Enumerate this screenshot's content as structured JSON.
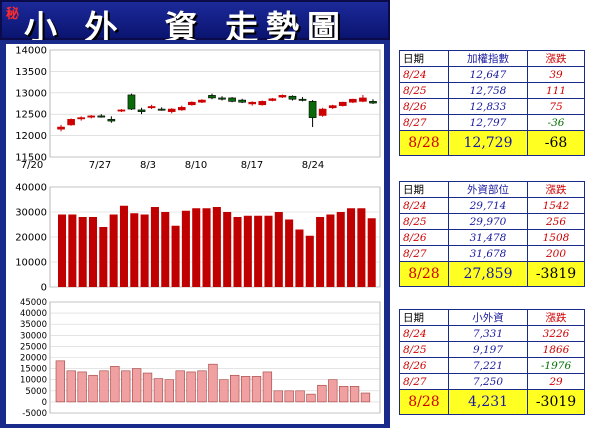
{
  "banner": {
    "tag": "秘",
    "title": "小 外  資 走勢圖"
  },
  "colors": {
    "up": "#cc0000",
    "down": "#0a6a0a",
    "bar": "#c00000",
    "pinkbar": "#f0a0a0",
    "frame": "#1a2a8a",
    "highlight": "#ffff22"
  },
  "chart_data": [
    {
      "type": "candlestick",
      "ylim": [
        11500,
        14000
      ],
      "yticks": [
        "14000",
        "13500",
        "13000",
        "12500",
        "12000",
        "11500"
      ],
      "x_labels": [
        "7/20",
        "7/27",
        "8/3",
        "8/10",
        "8/17",
        "8/24"
      ],
      "candles": [
        [
          12150,
          12250,
          12100,
          12200
        ],
        [
          12250,
          12400,
          12230,
          12380
        ],
        [
          12390,
          12450,
          12350,
          12420
        ],
        [
          12430,
          12480,
          12400,
          12460
        ],
        [
          12460,
          12500,
          12420,
          12440
        ],
        [
          12380,
          12450,
          12300,
          12340
        ],
        [
          12580,
          12620,
          12550,
          12600
        ],
        [
          12950,
          12980,
          12600,
          12620
        ],
        [
          12600,
          12650,
          12500,
          12560
        ],
        [
          12650,
          12720,
          12620,
          12680
        ],
        [
          12620,
          12660,
          12580,
          12600
        ],
        [
          12560,
          12640,
          12520,
          12620
        ],
        [
          12600,
          12700,
          12580,
          12660
        ],
        [
          12720,
          12800,
          12700,
          12780
        ],
        [
          12780,
          12850,
          12760,
          12830
        ],
        [
          12940,
          12980,
          12850,
          12880
        ],
        [
          12880,
          12920,
          12820,
          12850
        ],
        [
          12880,
          12900,
          12780,
          12800
        ],
        [
          12830,
          12860,
          12760,
          12780
        ],
        [
          12740,
          12800,
          12700,
          12780
        ],
        [
          12720,
          12820,
          12700,
          12800
        ],
        [
          12820,
          12880,
          12800,
          12860
        ],
        [
          12900,
          12960,
          12880,
          12940
        ],
        [
          12920,
          12940,
          12820,
          12850
        ],
        [
          12850,
          12900,
          12800,
          12840
        ],
        [
          12800,
          12830,
          12200,
          12420
        ],
        [
          12470,
          12650,
          12440,
          12620
        ],
        [
          12650,
          12720,
          12620,
          12700
        ],
        [
          12700,
          12790,
          12680,
          12780
        ],
        [
          12780,
          12860,
          12760,
          12850
        ],
        [
          12800,
          12950,
          12780,
          12880
        ],
        [
          12800,
          12850,
          12740,
          12760
        ]
      ]
    },
    {
      "type": "bar",
      "ylim": [
        0,
        40000
      ],
      "yticks": [
        "40000",
        "30000",
        "20000",
        "10000",
        "0"
      ],
      "values": [
        29000,
        29000,
        28000,
        28000,
        24000,
        29000,
        32500,
        29500,
        29000,
        32000,
        30000,
        24500,
        30500,
        31500,
        31500,
        32000,
        30000,
        28000,
        28500,
        28500,
        28500,
        30000,
        27000,
        23000,
        20500,
        28000,
        29000,
        30000,
        31500,
        31500,
        27500
      ]
    },
    {
      "type": "bar",
      "ylim": [
        -5000,
        45000
      ],
      "yticks": [
        "45000",
        "40000",
        "35000",
        "30000",
        "25000",
        "20000",
        "15000",
        "10000",
        "5000",
        "0",
        "-5000"
      ],
      "values": [
        18500,
        14000,
        13500,
        12000,
        14000,
        16000,
        14000,
        15000,
        13000,
        10500,
        10000,
        14000,
        13500,
        14000,
        17000,
        10000,
        12000,
        11500,
        11500,
        13500,
        5000,
        5000,
        5000,
        3500,
        7500,
        10000,
        7000,
        7000,
        4000
      ]
    }
  ],
  "tables": [
    {
      "headers": [
        "日期",
        "加權指數",
        "漲跌"
      ],
      "rows": [
        [
          "8/24",
          "12,647",
          "39"
        ],
        [
          "8/25",
          "12,758",
          "111"
        ],
        [
          "8/26",
          "12,833",
          "75"
        ],
        [
          "8/27",
          "12,797",
          "-36"
        ]
      ],
      "footer": [
        "8/28",
        "12,729",
        "-68"
      ]
    },
    {
      "headers": [
        "日期",
        "外資部位",
        "漲跌"
      ],
      "rows": [
        [
          "8/24",
          "29,714",
          "1542"
        ],
        [
          "8/25",
          "29,970",
          "256"
        ],
        [
          "8/26",
          "31,478",
          "1508"
        ],
        [
          "8/27",
          "31,678",
          "200"
        ]
      ],
      "footer": [
        "8/28",
        "27,859",
        "-3819"
      ]
    },
    {
      "headers": [
        "日期",
        "小外資",
        "漲跌"
      ],
      "rows": [
        [
          "8/24",
          "7,331",
          "3226"
        ],
        [
          "8/25",
          "9,197",
          "1866"
        ],
        [
          "8/26",
          "7,221",
          "-1976"
        ],
        [
          "8/27",
          "7,250",
          "29"
        ]
      ],
      "footer": [
        "8/28",
        "4,231",
        "-3019"
      ]
    }
  ]
}
